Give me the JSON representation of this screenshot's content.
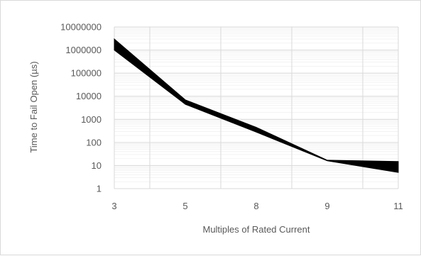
{
  "chart_data": {
    "type": "area",
    "title": "",
    "xlabel": "Multiples of Rated Current",
    "ylabel": "Time to Fail Open (µs)",
    "x_categories": [
      "3",
      "5",
      "8",
      "9",
      "11"
    ],
    "y_scale": "log",
    "ylim": [
      1,
      10000000
    ],
    "y_ticks": [
      "1",
      "10",
      "100",
      "1000",
      "10000",
      "100000",
      "1000000",
      "10000000"
    ],
    "grid": "horizontal major and minor",
    "series": [
      {
        "name": "",
        "values": [
          3000000,
          7000,
          450,
          17,
          15
        ]
      },
      {
        "name": "",
        "values": [
          1000000,
          4500,
          280,
          16,
          5
        ]
      }
    ],
    "colors": {
      "band": "#000000",
      "grid": "#d9d9d9",
      "minor_grid": "#ececec",
      "text": "#595959"
    }
  }
}
